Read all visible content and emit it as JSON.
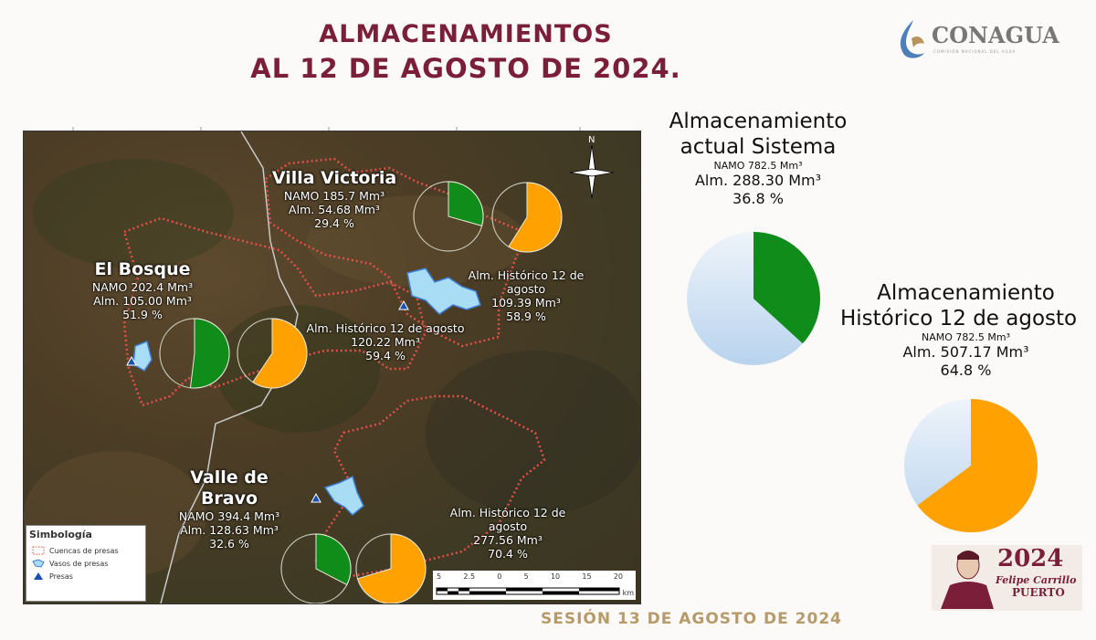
{
  "header": {
    "title_line1": "ALMACENAMIENTOS",
    "title_line2": "AL  12  DE AGOSTO DE 2024.",
    "logo": {
      "name": "CONAGUA",
      "subtitle": "COMISIÓN NACIONAL DEL AGUA"
    }
  },
  "map": {
    "reservoirs": [
      {
        "name": "Villa Victoria",
        "namo": "NAMO 185.7 Mm³",
        "alm": "Alm. 54.68 Mm³",
        "pct": "29.4 %",
        "current_pct": 29.4,
        "hist_label": "Alm. Histórico 12 de agosto",
        "hist_alm": "109.39 Mm³",
        "hist_pct_text": "58.9 %",
        "hist_pct": 58.9
      },
      {
        "name": "El Bosque",
        "namo": "NAMO 202.4 Mm³",
        "alm": "Alm. 105.00 Mm³",
        "pct": "51.9 %",
        "current_pct": 51.9,
        "hist_label": "Alm. Histórico 12 de agosto",
        "hist_alm": "120.22 Mm³",
        "hist_pct_text": "59.4 %",
        "hist_pct": 59.4
      },
      {
        "name": "Valle de Bravo",
        "namo": "NAMO 394.4 Mm³",
        "alm": "Alm. 128.63 Mm³",
        "pct": "32.6 %",
        "current_pct": 32.6,
        "hist_label": "Alm. Histórico 12 de agosto",
        "hist_alm": "277.56 Mm³",
        "hist_pct_text": "70.4 %",
        "hist_pct": 70.4
      }
    ],
    "legend": {
      "title": "Simbología",
      "items": [
        "Cuencas de presas",
        "Vasos de presas",
        "Presas"
      ]
    },
    "scale": {
      "ticks": [
        "5",
        "2.5",
        "0",
        "5",
        "10",
        "15",
        "20"
      ],
      "unit": "km"
    }
  },
  "system": {
    "current": {
      "title1": "Almacenamiento",
      "title2": "actual Sistema",
      "namo": "NAMO 782.5 Mm³",
      "alm": "Alm. 288.30 Mm³",
      "pct_text": "36.8 %",
      "pct": 36.8
    },
    "historic": {
      "title1": "Almacenamiento",
      "title2": "Histórico 12 de agosto",
      "namo": "NAMO 782.5 Mm³",
      "alm": "Alm. 507.17 Mm³",
      "pct_text": "64.8 %",
      "pct": 64.8
    }
  },
  "footer": {
    "session": "SESIÓN 13 DE AGOSTO DE 2024",
    "badge": {
      "year": "2024",
      "name1": "Felipe Carrillo",
      "name2": "PUERTO"
    }
  },
  "colors": {
    "title": "#7a1e3a",
    "current": "#0f8c1a",
    "historic": "#ffa100",
    "remaining": "#cfe0f2",
    "basin": "#e2504a",
    "lake": "#a9dcf5"
  }
}
